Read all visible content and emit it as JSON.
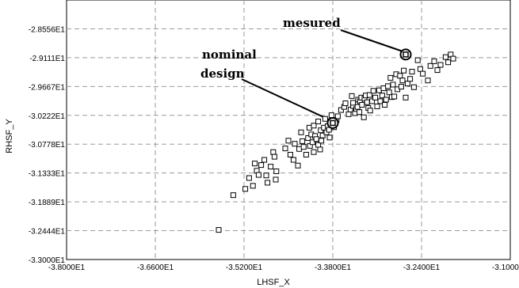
{
  "chart_data": {
    "type": "scatter",
    "title": "",
    "xlabel": "LHSF_X",
    "ylabel": "RHSF_Y",
    "xlim": [
      -38.0,
      -31.0
    ],
    "ylim": [
      -33.0,
      -28.0
    ],
    "xticks": [
      -38.0,
      -36.6,
      -35.2,
      -33.8,
      -32.4,
      -31.0
    ],
    "xtick_labels": [
      "-3.8000E1",
      "-3.6600E1",
      "-3.5200E1",
      "-3.3800E1",
      "-3.2400E1",
      "-3.1000E1"
    ],
    "yticks": [
      -28.556,
      -29.111,
      -29.667,
      -30.222,
      -30.778,
      -31.333,
      -31.889,
      -32.444,
      -33.0
    ],
    "ytick_labels": [
      "-2.8556E1",
      "-2.9111E1",
      "-2.9667E1",
      "-3.0222E1",
      "-3.0778E1",
      "-3.1333E1",
      "-3.1889E1",
      "-3.2444E1",
      "-3.3000E1"
    ],
    "grid": true,
    "series": [
      {
        "x": [
          -35.6,
          -35.37,
          -35.18,
          -35.12,
          -35.06,
          -35.03,
          -35.0,
          -34.97,
          -34.93,
          -34.88,
          -34.85,
          -34.83,
          -34.78,
          -34.74,
          -34.72,
          -34.7,
          -34.69,
          -34.55,
          -34.5,
          -34.47,
          -34.42,
          -34.4,
          -34.35,
          -34.33,
          -34.3,
          -34.28,
          -34.26,
          -34.22,
          -34.19,
          -34.17,
          -34.16,
          -34.14,
          -34.12,
          -34.1,
          -34.1,
          -34.08,
          -34.06,
          -34.03,
          -34.03,
          -34.0,
          -33.99,
          -33.98,
          -33.96,
          -33.94,
          -33.92,
          -33.9,
          -33.88,
          -33.86,
          -33.85,
          -33.82,
          -33.8,
          -33.78,
          -33.74,
          -33.72,
          -33.67,
          -33.62,
          -33.6,
          -33.55,
          -33.52,
          -33.5,
          -33.48,
          -33.48,
          -33.45,
          -33.43,
          -33.41,
          -33.4,
          -33.38,
          -33.37,
          -33.35,
          -33.34,
          -33.31,
          -33.3,
          -33.28,
          -33.26,
          -33.24,
          -33.22,
          -33.21,
          -33.18,
          -33.16,
          -33.13,
          -33.1,
          -33.07,
          -33.05,
          -33.02,
          -33.0,
          -32.98,
          -32.96,
          -32.93,
          -32.91,
          -32.89,
          -32.87,
          -32.85,
          -32.83,
          -32.8,
          -32.78,
          -32.74,
          -32.72,
          -32.7,
          -32.68,
          -32.65,
          -32.62,
          -32.58,
          -32.55,
          -32.52,
          -32.46,
          -32.42,
          -32.38,
          -32.3,
          -32.26,
          -32.2,
          -32.15,
          -32.1,
          -32.02,
          -31.98,
          -31.94,
          -31.9
        ],
        "y": [
          -32.43,
          -31.76,
          -31.64,
          -31.43,
          -31.58,
          -31.15,
          -31.29,
          -31.37,
          -31.18,
          -31.08,
          -31.38,
          -31.52,
          -31.21,
          -30.93,
          -31.02,
          -31.46,
          -31.3,
          -30.86,
          -30.71,
          -30.98,
          -31.08,
          -30.77,
          -31.19,
          -30.87,
          -30.55,
          -30.72,
          -30.83,
          -30.98,
          -30.66,
          -30.46,
          -30.81,
          -30.59,
          -30.74,
          -30.42,
          -30.93,
          -30.62,
          -30.68,
          -30.34,
          -30.79,
          -30.88,
          -30.51,
          -30.71,
          -30.61,
          -30.46,
          -30.29,
          -30.55,
          -30.43,
          -30.5,
          -30.65,
          -30.22,
          -30.35,
          -30.45,
          -30.31,
          -30.24,
          -30.12,
          -30.06,
          -29.99,
          -30.2,
          -30.11,
          -29.85,
          -30.04,
          -29.98,
          -30.18,
          -30.1,
          -30.06,
          -29.92,
          -30.16,
          -29.95,
          -29.88,
          -30.02,
          -30.26,
          -29.9,
          -29.84,
          -29.97,
          -30.08,
          -29.83,
          -30.13,
          -29.95,
          -29.75,
          -29.88,
          -30.05,
          -29.74,
          -29.95,
          -29.84,
          -29.7,
          -30.02,
          -29.92,
          -29.66,
          -29.78,
          -29.5,
          -29.87,
          -29.63,
          -29.86,
          -29.43,
          -29.72,
          -29.46,
          -29.67,
          -29.55,
          -29.36,
          -29.88,
          -29.61,
          -29.52,
          -29.38,
          -29.68,
          -29.16,
          -29.33,
          -29.42,
          -29.55,
          -29.27,
          -29.18,
          -29.35,
          -29.25,
          -29.1,
          -29.2,
          -29.05,
          -29.13
        ]
      }
    ],
    "highlighted_points": [
      {
        "label": "nominal design",
        "x": -33.8,
        "y": -30.37
      },
      {
        "label": "mesured",
        "x": -32.65,
        "y": -29.05
      }
    ],
    "annotations": {
      "mesured": "mesured",
      "nominal_line1": "nominal",
      "nominal_line2": "design"
    }
  }
}
